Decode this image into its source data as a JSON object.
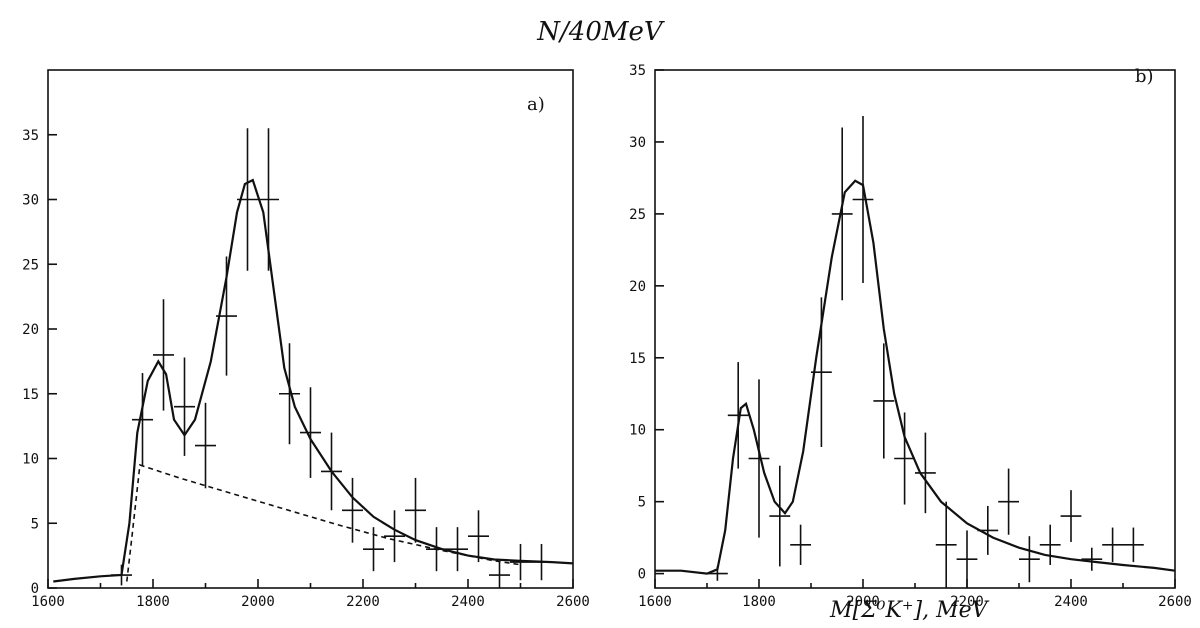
{
  "figure": {
    "ylabel": "N/40MeV",
    "xlabel": "M[Σ⁰K⁺], MeV"
  },
  "chart_data": [
    {
      "type": "scatter",
      "panel_label": "a)",
      "xlim": [
        1600,
        2600
      ],
      "ylim": [
        0,
        40
      ],
      "xticks": [
        1600,
        1800,
        2000,
        2200,
        2400,
        2600
      ],
      "yticks": [
        0,
        5,
        10,
        15,
        20,
        25,
        30,
        35
      ],
      "points": [
        {
          "x": 1740,
          "y": 1.0,
          "xerr": 20,
          "yerr": 0.8
        },
        {
          "x": 1780,
          "y": 13,
          "xerr": 20,
          "yerr": 3.6
        },
        {
          "x": 1820,
          "y": 18,
          "xerr": 20,
          "yerr": 4.3
        },
        {
          "x": 1860,
          "y": 14,
          "xerr": 20,
          "yerr": 3.8
        },
        {
          "x": 1900,
          "y": 11,
          "xerr": 20,
          "yerr": 3.3
        },
        {
          "x": 1940,
          "y": 21,
          "xerr": 20,
          "yerr": 4.6
        },
        {
          "x": 1980,
          "y": 30,
          "xerr": 20,
          "yerr": 5.5
        },
        {
          "x": 2020,
          "y": 30,
          "xerr": 20,
          "yerr": 5.5
        },
        {
          "x": 2060,
          "y": 15,
          "xerr": 20,
          "yerr": 3.9
        },
        {
          "x": 2100,
          "y": 12,
          "xerr": 20,
          "yerr": 3.5
        },
        {
          "x": 2140,
          "y": 9,
          "xerr": 20,
          "yerr": 3.0
        },
        {
          "x": 2180,
          "y": 6,
          "xerr": 20,
          "yerr": 2.5
        },
        {
          "x": 2220,
          "y": 3,
          "xerr": 20,
          "yerr": 1.7
        },
        {
          "x": 2260,
          "y": 4,
          "xerr": 20,
          "yerr": 2.0
        },
        {
          "x": 2300,
          "y": 6,
          "xerr": 20,
          "yerr": 2.5
        },
        {
          "x": 2340,
          "y": 3,
          "xerr": 20,
          "yerr": 1.7
        },
        {
          "x": 2380,
          "y": 3,
          "xerr": 20,
          "yerr": 1.7
        },
        {
          "x": 2420,
          "y": 4,
          "xerr": 20,
          "yerr": 2.0
        },
        {
          "x": 2460,
          "y": 1,
          "xerr": 20,
          "yerr": 1.0
        },
        {
          "x": 2500,
          "y": 2,
          "xerr": 20,
          "yerr": 1.4
        },
        {
          "x": 2540,
          "y": 2,
          "xerr": 20,
          "yerr": 1.4
        }
      ],
      "fit_curve": [
        [
          1610,
          0.5
        ],
        [
          1650,
          0.7
        ],
        [
          1700,
          0.9
        ],
        [
          1740,
          1.0
        ],
        [
          1755,
          5
        ],
        [
          1770,
          12
        ],
        [
          1790,
          16
        ],
        [
          1810,
          17.5
        ],
        [
          1825,
          16.5
        ],
        [
          1840,
          13
        ],
        [
          1860,
          11.8
        ],
        [
          1880,
          13
        ],
        [
          1910,
          17.5
        ],
        [
          1940,
          24
        ],
        [
          1960,
          29
        ],
        [
          1975,
          31.2
        ],
        [
          1990,
          31.5
        ],
        [
          2010,
          29
        ],
        [
          2030,
          23
        ],
        [
          2050,
          17
        ],
        [
          2070,
          14
        ],
        [
          2100,
          11.5
        ],
        [
          2140,
          9
        ],
        [
          2180,
          7
        ],
        [
          2220,
          5.5
        ],
        [
          2260,
          4.5
        ],
        [
          2300,
          3.7
        ],
        [
          2350,
          3.0
        ],
        [
          2400,
          2.5
        ],
        [
          2450,
          2.2
        ],
        [
          2500,
          2.1
        ],
        [
          2560,
          2.0
        ],
        [
          2600,
          1.9
        ]
      ],
      "background_curve": [
        [
          1750,
          0.5
        ],
        [
          1760,
          4
        ],
        [
          1775,
          9.5
        ],
        [
          1850,
          8.5
        ],
        [
          1950,
          7.3
        ],
        [
          2050,
          6.1
        ],
        [
          2150,
          4.9
        ],
        [
          2250,
          3.8
        ],
        [
          2350,
          2.9
        ],
        [
          2450,
          2.1
        ],
        [
          2500,
          1.8
        ]
      ]
    },
    {
      "type": "scatter",
      "panel_label": "b)",
      "xlim": [
        1600,
        2600
      ],
      "ylim": [
        -1,
        35
      ],
      "xticks": [
        1600,
        1800,
        2000,
        2200,
        2400,
        2600
      ],
      "yticks": [
        0,
        5,
        10,
        15,
        20,
        25,
        30,
        35
      ],
      "points": [
        {
          "x": 1720,
          "y": 0,
          "xerr": 20,
          "yerr": 0.5
        },
        {
          "x": 1760,
          "y": 11,
          "xerr": 20,
          "yerr": 3.7
        },
        {
          "x": 1800,
          "y": 8,
          "xerr": 20,
          "yerr": 5.5
        },
        {
          "x": 1840,
          "y": 4,
          "xerr": 20,
          "yerr": 3.5
        },
        {
          "x": 1880,
          "y": 2,
          "xerr": 20,
          "yerr": 1.4
        },
        {
          "x": 1920,
          "y": 14,
          "xerr": 20,
          "yerr": 5.2
        },
        {
          "x": 1960,
          "y": 25,
          "xerr": 20,
          "yerr": 6.0
        },
        {
          "x": 2000,
          "y": 26,
          "xerr": 20,
          "yerr": 5.8
        },
        {
          "x": 2040,
          "y": 12,
          "xerr": 20,
          "yerr": 4.0
        },
        {
          "x": 2080,
          "y": 8,
          "xerr": 20,
          "yerr": 3.2
        },
        {
          "x": 2120,
          "y": 7,
          "xerr": 20,
          "yerr": 2.8
        },
        {
          "x": 2160,
          "y": 2,
          "xerr": 20,
          "yerr": 3.0
        },
        {
          "x": 2200,
          "y": 1,
          "xerr": 20,
          "yerr": 2.0
        },
        {
          "x": 2240,
          "y": 3,
          "xerr": 20,
          "yerr": 1.7
        },
        {
          "x": 2280,
          "y": 5,
          "xerr": 20,
          "yerr": 2.3
        },
        {
          "x": 2320,
          "y": 1,
          "xerr": 20,
          "yerr": 1.6
        },
        {
          "x": 2360,
          "y": 2,
          "xerr": 20,
          "yerr": 1.4
        },
        {
          "x": 2400,
          "y": 4,
          "xerr": 20,
          "yerr": 1.8
        },
        {
          "x": 2440,
          "y": 1,
          "xerr": 20,
          "yerr": 0.8
        },
        {
          "x": 2480,
          "y": 2,
          "xerr": 20,
          "yerr": 1.2
        },
        {
          "x": 2520,
          "y": 2,
          "xerr": 20,
          "yerr": 1.2
        }
      ],
      "fit_curve": [
        [
          1600,
          0.2
        ],
        [
          1650,
          0.2
        ],
        [
          1700,
          0
        ],
        [
          1720,
          0.3
        ],
        [
          1735,
          3
        ],
        [
          1750,
          8
        ],
        [
          1765,
          11.5
        ],
        [
          1775,
          11.8
        ],
        [
          1790,
          10
        ],
        [
          1810,
          7
        ],
        [
          1830,
          5
        ],
        [
          1850,
          4.2
        ],
        [
          1865,
          5
        ],
        [
          1885,
          8.5
        ],
        [
          1910,
          15
        ],
        [
          1940,
          22
        ],
        [
          1965,
          26.5
        ],
        [
          1985,
          27.3
        ],
        [
          2000,
          27
        ],
        [
          2020,
          23
        ],
        [
          2040,
          17
        ],
        [
          2060,
          12.5
        ],
        [
          2080,
          9.5
        ],
        [
          2110,
          7
        ],
        [
          2150,
          5
        ],
        [
          2200,
          3.5
        ],
        [
          2250,
          2.5
        ],
        [
          2300,
          1.8
        ],
        [
          2350,
          1.3
        ],
        [
          2400,
          1.0
        ],
        [
          2450,
          0.8
        ],
        [
          2500,
          0.6
        ],
        [
          2560,
          0.4
        ],
        [
          2600,
          0.2
        ]
      ]
    }
  ]
}
